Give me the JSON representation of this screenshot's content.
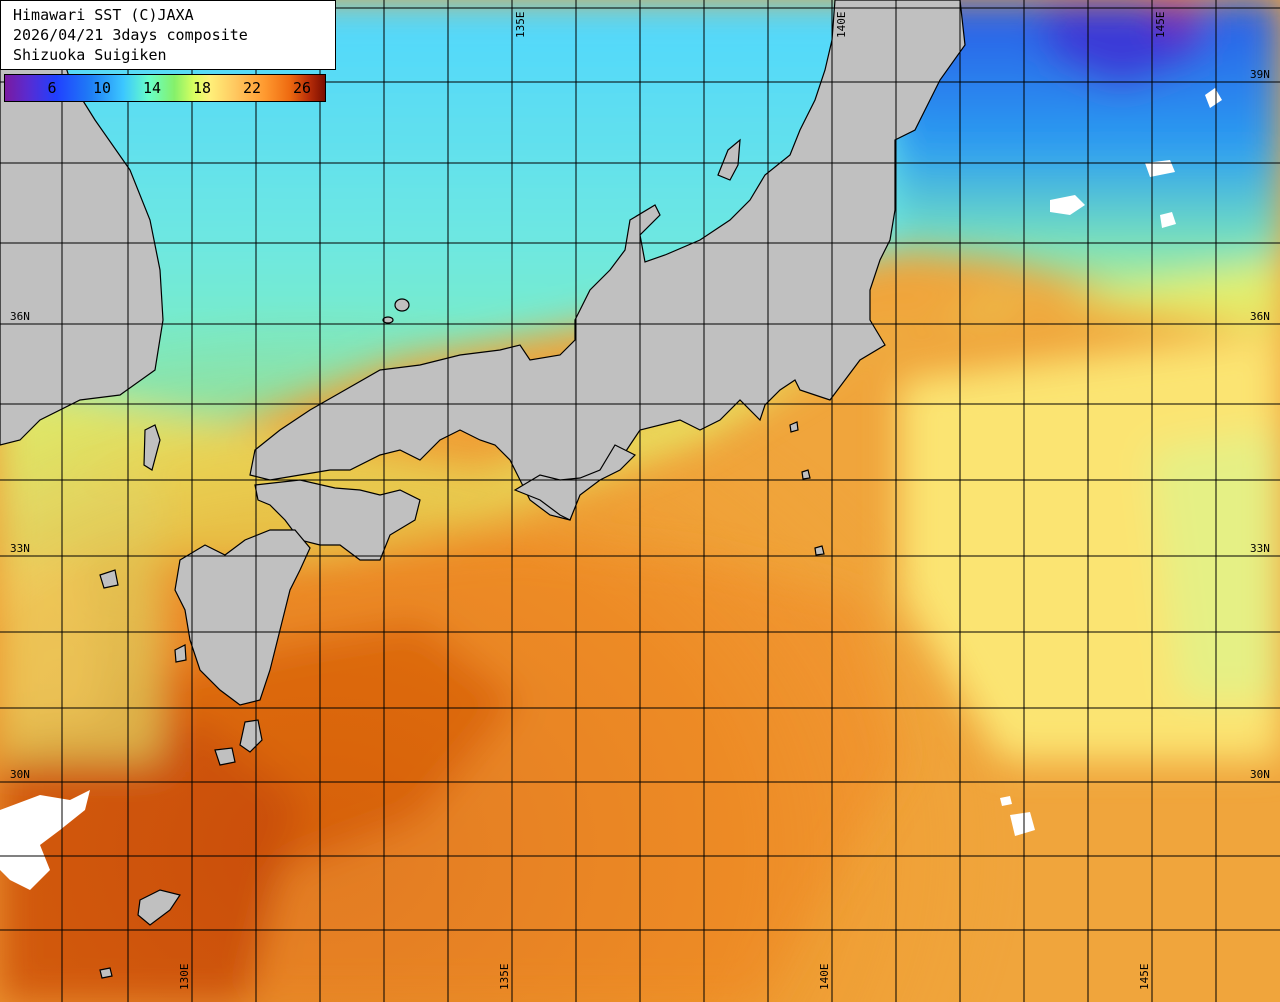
{
  "header": {
    "line1": "Himawari SST (C)JAXA",
    "line2": "2026/04/21 3days composite",
    "line3": "Shizuoka Suigiken"
  },
  "colorbar": {
    "ticks": [
      "6",
      "10",
      "14",
      "18",
      "22",
      "26"
    ]
  },
  "grid": {
    "lat_labels": [
      "39N",
      "36N",
      "33N",
      "30N"
    ],
    "lon_labels": [
      "130E",
      "135E",
      "140E",
      "145E"
    ]
  },
  "colors": {
    "land": "#c0c0c0",
    "coast": "#000000",
    "grid": "#000000",
    "cloud": "#ffffff"
  }
}
